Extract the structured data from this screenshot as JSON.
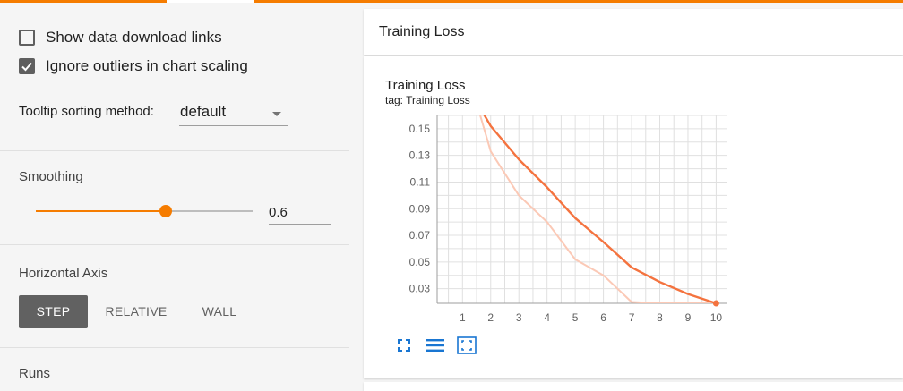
{
  "colors": {
    "accent": "#f57c00",
    "line_smoothed": "#f4733f",
    "line_raw": "#fbc9b6",
    "icon_blue": "#1976d2"
  },
  "sidebar": {
    "show_download_label": "Show data download links",
    "show_download_checked": false,
    "ignore_outliers_label": "Ignore outliers in chart scaling",
    "ignore_outliers_checked": true,
    "tooltip_label": "Tooltip sorting method:",
    "tooltip_value": "default",
    "smoothing_heading": "Smoothing",
    "smoothing_value": "0.6",
    "smoothing_fraction": 0.6,
    "horizontal_axis_heading": "Horizontal Axis",
    "axis_options": [
      "STEP",
      "RELATIVE",
      "WALL"
    ],
    "axis_selected": "STEP",
    "runs_heading": "Runs"
  },
  "main": {
    "header_title": "Training Loss",
    "chart_title": "Training Loss",
    "chart_tag": "tag: Training Loss",
    "tools": [
      "fit-to-data-icon",
      "toggle-log-scale-icon",
      "reset-zoom-icon"
    ]
  },
  "chart_data": {
    "type": "line",
    "title": "Training Loss",
    "subtitle": "tag: Training Loss",
    "xlabel": "",
    "ylabel": "",
    "x_ticks": [
      1,
      2,
      3,
      4,
      5,
      6,
      7,
      8,
      9,
      10
    ],
    "y_ticks": [
      0.03,
      0.05,
      0.07,
      0.09,
      0.11,
      0.13,
      0.15
    ],
    "xlim": [
      0.1,
      10.4
    ],
    "ylim": [
      0.019,
      0.16
    ],
    "grid": true,
    "series": [
      {
        "style": "smoothed",
        "x": [
          1.7,
          2,
          3,
          4,
          5,
          6,
          7,
          8,
          9,
          10
        ],
        "y": [
          0.163,
          0.152,
          0.127,
          0.106,
          0.083,
          0.065,
          0.046,
          0.035,
          0.026,
          0.019
        ]
      },
      {
        "style": "raw",
        "x": [
          1.6,
          2,
          3,
          4,
          5,
          6,
          7,
          8,
          9,
          10
        ],
        "y": [
          0.162,
          0.133,
          0.1,
          0.08,
          0.052,
          0.04,
          0.02,
          0.019,
          0.019,
          0.019
        ]
      }
    ]
  }
}
